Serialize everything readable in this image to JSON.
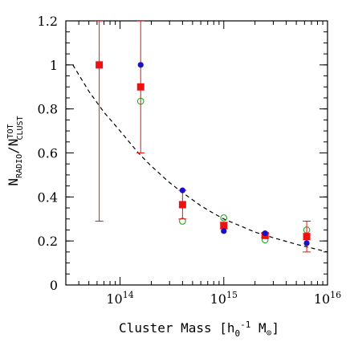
{
  "chart_data": {
    "type": "scatter",
    "xlabel": "Cluster Mass [h0^-1 M⊙]",
    "ylabel": "N_RADIO / N^TOT_CLUST",
    "xscale": "log",
    "xlim": [
      30000000000000.0,
      1e+16
    ],
    "ylim": [
      0,
      1.2
    ],
    "x_ticks": [
      {
        "value": 100000000000000.0,
        "base": "10",
        "exp": "14"
      },
      {
        "value": 1000000000000000.0,
        "base": "10",
        "exp": "15"
      },
      {
        "value": 1e+16,
        "base": "10",
        "exp": "16"
      }
    ],
    "y_ticks": [
      {
        "value": 0,
        "label": "0"
      },
      {
        "value": 0.2,
        "label": "0.2"
      },
      {
        "value": 0.4,
        "label": "0.4"
      },
      {
        "value": 0.6,
        "label": "0.6"
      },
      {
        "value": 0.8,
        "label": "0.8"
      },
      {
        "value": 1.0,
        "label": "1"
      },
      {
        "value": 1.2,
        "label": "1.2"
      }
    ],
    "series": [
      {
        "marker": "filled-square",
        "color": "#ee1111",
        "points": [
          {
            "x": 63000000000000.0,
            "y": 1.0,
            "ylow": 0.29,
            "yhigh": 1.2
          },
          {
            "x": 158000000000000.0,
            "y": 0.9,
            "ylow": 0.6,
            "yhigh": 1.2
          },
          {
            "x": 400000000000000.0,
            "y": 0.365,
            "ylow": 0.3,
            "yhigh": 0.43
          },
          {
            "x": 1000000000000000.0,
            "y": 0.27,
            "ylow": 0.255,
            "yhigh": 0.285
          },
          {
            "x": 2500000000000000.0,
            "y": 0.225,
            "ylow": 0.215,
            "yhigh": 0.235
          },
          {
            "x": 6300000000000000.0,
            "y": 0.22,
            "ylow": 0.15,
            "yhigh": 0.29
          }
        ]
      },
      {
        "marker": "filled-circle",
        "color": "#1a10c8",
        "points": [
          {
            "x": 158000000000000.0,
            "y": 1.0
          },
          {
            "x": 400000000000000.0,
            "y": 0.43
          },
          {
            "x": 1000000000000000.0,
            "y": 0.245
          },
          {
            "x": 2500000000000000.0,
            "y": 0.235
          },
          {
            "x": 6300000000000000.0,
            "y": 0.19
          }
        ]
      },
      {
        "marker": "open-circle",
        "color": "#22aa22",
        "points": [
          {
            "x": 158000000000000.0,
            "y": 0.835
          },
          {
            "x": 400000000000000.0,
            "y": 0.29
          },
          {
            "x": 1000000000000000.0,
            "y": 0.305
          },
          {
            "x": 2500000000000000.0,
            "y": 0.205
          },
          {
            "x": 6300000000000000.0,
            "y": 0.25
          }
        ]
      }
    ],
    "curve": {
      "style": "dashed",
      "color": "#000000",
      "x": [
        35000000000000.0,
        50000000000000.0,
        70000000000000.0,
        100000000000000.0,
        150000000000000.0,
        200000000000000.0,
        300000000000000.0,
        400000000000000.0,
        600000000000000.0,
        800000000000000.0,
        1000000000000000.0,
        1500000000000000.0,
        2000000000000000.0,
        3000000000000000.0,
        5000000000000000.0,
        7000000000000000.0,
        1e+16
      ],
      "y": [
        1.0,
        0.88,
        0.785,
        0.7,
        0.6,
        0.54,
        0.465,
        0.42,
        0.36,
        0.325,
        0.3,
        0.265,
        0.24,
        0.215,
        0.185,
        0.168,
        0.15
      ]
    }
  }
}
